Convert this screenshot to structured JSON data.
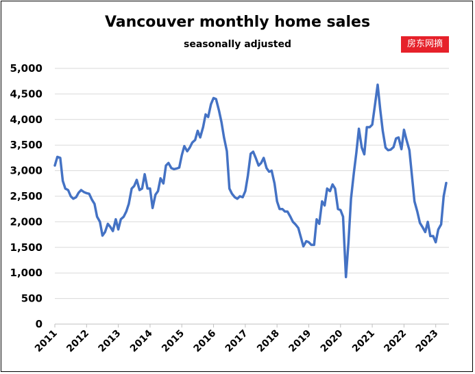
{
  "chart_data": {
    "type": "line",
    "title": "Vancouver monthly home sales",
    "subtitle": "seasonally adjusted",
    "xlabel": "",
    "ylabel": "",
    "ylim": [
      0,
      5000
    ],
    "yticks": [
      0,
      500,
      1000,
      1500,
      2000,
      2500,
      3000,
      3500,
      4000,
      4500,
      5000
    ],
    "ytick_labels": [
      "0",
      "500",
      "1,000",
      "1,500",
      "2,000",
      "2,500",
      "3,000",
      "3,500",
      "4,000",
      "4,500",
      "5,000"
    ],
    "xticks": [
      "2011",
      "2012",
      "2013",
      "2014",
      "2015",
      "2016",
      "2017",
      "2018",
      "2019",
      "2020",
      "2021",
      "2022",
      "2023"
    ],
    "grid": true,
    "legend": "none",
    "series": [
      {
        "color": "#4472c4",
        "x": [
          2011.0,
          2011.08,
          2011.17,
          2011.25,
          2011.33,
          2011.42,
          2011.5,
          2011.58,
          2011.67,
          2011.75,
          2011.83,
          2011.92,
          2012.0,
          2012.08,
          2012.17,
          2012.25,
          2012.33,
          2012.42,
          2012.5,
          2012.58,
          2012.67,
          2012.75,
          2012.83,
          2012.92,
          2013.0,
          2013.08,
          2013.17,
          2013.25,
          2013.33,
          2013.42,
          2013.5,
          2013.58,
          2013.67,
          2013.75,
          2013.83,
          2013.92,
          2014.0,
          2014.08,
          2014.17,
          2014.25,
          2014.33,
          2014.42,
          2014.5,
          2014.58,
          2014.67,
          2014.75,
          2014.83,
          2014.92,
          2015.0,
          2015.08,
          2015.17,
          2015.25,
          2015.33,
          2015.42,
          2015.5,
          2015.58,
          2015.67,
          2015.75,
          2015.83,
          2015.92,
          2016.0,
          2016.08,
          2016.17,
          2016.25,
          2016.33,
          2016.42,
          2016.5,
          2016.58,
          2016.67,
          2016.75,
          2016.83,
          2016.92,
          2017.0,
          2017.08,
          2017.17,
          2017.25,
          2017.33,
          2017.42,
          2017.5,
          2017.58,
          2017.67,
          2017.75,
          2017.83,
          2017.92,
          2018.0,
          2018.08,
          2018.17,
          2018.25,
          2018.33,
          2018.42,
          2018.5,
          2018.58,
          2018.67,
          2018.75,
          2018.83,
          2018.92,
          2019.0,
          2019.08,
          2019.17,
          2019.25,
          2019.33,
          2019.42,
          2019.5,
          2019.58,
          2019.67,
          2019.75,
          2019.83,
          2019.92,
          2020.0,
          2020.08,
          2020.17,
          2020.25,
          2020.33,
          2020.42,
          2020.5,
          2020.58,
          2020.67,
          2020.75,
          2020.83,
          2020.92,
          2021.0,
          2021.08,
          2021.17,
          2021.25,
          2021.33,
          2021.42,
          2021.5,
          2021.58,
          2021.67,
          2021.75,
          2021.83,
          2021.92,
          2022.0,
          2022.08,
          2022.17,
          2022.25,
          2022.33,
          2022.42,
          2022.5,
          2022.58,
          2022.67,
          2022.75,
          2022.83,
          2022.92,
          2023.0,
          2023.08,
          2023.17,
          2023.25,
          2023.33
        ],
        "y": [
          3100,
          3270,
          3250,
          2800,
          2650,
          2620,
          2500,
          2450,
          2480,
          2570,
          2620,
          2580,
          2560,
          2550,
          2430,
          2350,
          2100,
          2000,
          1730,
          1800,
          1960,
          1900,
          1820,
          2050,
          1850,
          2050,
          2100,
          2200,
          2350,
          2650,
          2700,
          2820,
          2620,
          2650,
          2930,
          2650,
          2650,
          2270,
          2530,
          2600,
          2850,
          2750,
          3100,
          3150,
          3050,
          3030,
          3040,
          3060,
          3300,
          3480,
          3380,
          3450,
          3550,
          3600,
          3780,
          3650,
          3850,
          4100,
          4050,
          4300,
          4420,
          4400,
          4180,
          3950,
          3650,
          3380,
          2650,
          2550,
          2480,
          2450,
          2500,
          2480,
          2600,
          2900,
          3330,
          3370,
          3250,
          3100,
          3150,
          3250,
          3050,
          2980,
          3000,
          2750,
          2400,
          2250,
          2250,
          2200,
          2200,
          2100,
          2000,
          1950,
          1880,
          1700,
          1520,
          1620,
          1600,
          1550,
          1550,
          2050,
          1960,
          2400,
          2320,
          2650,
          2600,
          2730,
          2650,
          2250,
          2230,
          2100,
          920,
          1600,
          2450,
          2950,
          3350,
          3820,
          3450,
          3320,
          3850,
          3850,
          3900,
          4260,
          4680,
          4200,
          3780,
          3450,
          3400,
          3410,
          3460,
          3630,
          3650,
          3420,
          3800,
          3600,
          3400,
          2900,
          2400,
          2200,
          1980,
          1900,
          1800,
          2000,
          1720,
          1720,
          1600,
          1850,
          1950,
          2500,
          2760
        ]
      }
    ]
  },
  "watermark_text": "房东网摘"
}
